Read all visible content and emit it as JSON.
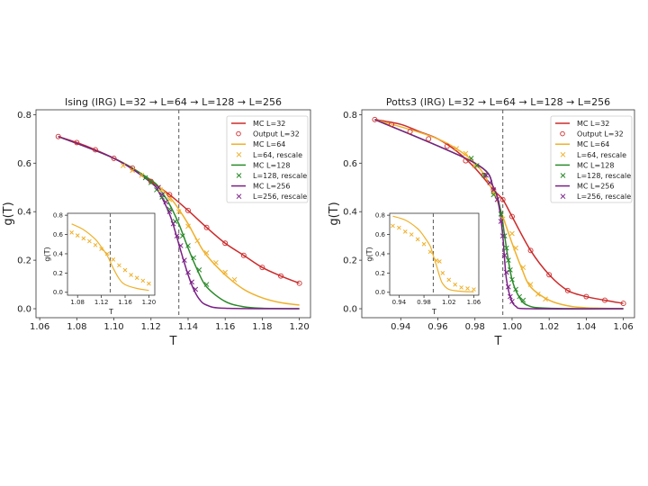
{
  "colors": {
    "red": "#cc2a2a",
    "yellow": "#efb02a",
    "green": "#2a8a2a",
    "purple": "#7a1f86",
    "dashed": "#666666"
  },
  "chart_data": [
    {
      "id": "ising-main",
      "type": "line",
      "title": "Ising (IRG)    L=32 → L=64 → L=128 → L=256",
      "xlabel": "T",
      "ylabel": "g(T)",
      "xlim": [
        1.058,
        1.206
      ],
      "ylim": [
        -0.037,
        0.82
      ],
      "xticks": [
        "1.06",
        "1.08",
        "1.10",
        "1.12",
        "1.14",
        "1.16",
        "1.18",
        "1.20"
      ],
      "yticks": [
        "0.0",
        "0.2",
        "0.4",
        "0.6",
        "0.8"
      ],
      "vline": 1.135,
      "legend": "top-right",
      "series": [
        {
          "name": "MC L=32",
          "kind": "line",
          "color": "red",
          "x": [
            1.07,
            1.08,
            1.09,
            1.1,
            1.11,
            1.12,
            1.13,
            1.14,
            1.15,
            1.16,
            1.17,
            1.18,
            1.19,
            1.2
          ],
          "y": [
            0.71,
            0.685,
            0.655,
            0.62,
            0.58,
            0.525,
            0.47,
            0.405,
            0.335,
            0.27,
            0.22,
            0.17,
            0.135,
            0.105
          ]
        },
        {
          "name": "Output L=32",
          "kind": "circle",
          "color": "red",
          "x": [
            1.07,
            1.08,
            1.09,
            1.1,
            1.11,
            1.12,
            1.13,
            1.14,
            1.15,
            1.16,
            1.17,
            1.18,
            1.19,
            1.2
          ],
          "y": [
            0.71,
            0.685,
            0.655,
            0.62,
            0.58,
            0.525,
            0.47,
            0.405,
            0.335,
            0.27,
            0.22,
            0.17,
            0.135,
            0.105
          ]
        },
        {
          "name": "MC L=64",
          "kind": "line",
          "color": "yellow",
          "x": [
            1.07,
            1.1,
            1.12,
            1.13,
            1.135,
            1.14,
            1.145,
            1.15,
            1.16,
            1.17,
            1.18,
            1.19,
            1.2
          ],
          "y": [
            0.71,
            0.62,
            0.53,
            0.46,
            0.41,
            0.35,
            0.28,
            0.22,
            0.14,
            0.08,
            0.045,
            0.025,
            0.015
          ]
        },
        {
          "name": "L=64, rescale",
          "kind": "cross",
          "color": "yellow",
          "x": [
            1.105,
            1.11,
            1.115,
            1.125,
            1.13,
            1.135,
            1.14,
            1.145,
            1.15,
            1.155,
            1.16,
            1.165
          ],
          "y": [
            0.59,
            0.57,
            0.55,
            0.49,
            0.45,
            0.4,
            0.34,
            0.28,
            0.23,
            0.19,
            0.15,
            0.12
          ]
        },
        {
          "name": "MC L=128",
          "kind": "line",
          "color": "green",
          "x": [
            1.07,
            1.1,
            1.12,
            1.125,
            1.13,
            1.135,
            1.14,
            1.145,
            1.15,
            1.16,
            1.17,
            1.18,
            1.2
          ],
          "y": [
            0.71,
            0.62,
            0.53,
            0.49,
            0.43,
            0.35,
            0.25,
            0.16,
            0.09,
            0.03,
            0.008,
            0.002,
            0.0
          ]
        },
        {
          "name": "L=128, rescale",
          "kind": "cross",
          "color": "green",
          "x": [
            1.117,
            1.12,
            1.123,
            1.126,
            1.13,
            1.133,
            1.137,
            1.14,
            1.143,
            1.146,
            1.15
          ],
          "y": [
            0.54,
            0.52,
            0.49,
            0.46,
            0.41,
            0.36,
            0.3,
            0.26,
            0.21,
            0.16,
            0.1
          ]
        },
        {
          "name": "MC L=256",
          "kind": "line",
          "color": "purple",
          "x": [
            1.07,
            1.1,
            1.12,
            1.125,
            1.13,
            1.133,
            1.136,
            1.14,
            1.143,
            1.146,
            1.15,
            1.16,
            1.2
          ],
          "y": [
            0.71,
            0.62,
            0.52,
            0.47,
            0.39,
            0.32,
            0.24,
            0.14,
            0.08,
            0.04,
            0.015,
            0.002,
            0.0
          ]
        },
        {
          "name": "L=256, rescale",
          "kind": "cross",
          "color": "purple",
          "x": [
            1.124,
            1.126,
            1.128,
            1.13,
            1.132,
            1.134,
            1.136,
            1.138,
            1.14,
            1.142,
            1.144
          ],
          "y": [
            0.5,
            0.47,
            0.44,
            0.4,
            0.35,
            0.3,
            0.26,
            0.2,
            0.15,
            0.11,
            0.08
          ]
        }
      ]
    },
    {
      "id": "ising-inset",
      "type": "line",
      "title": "",
      "xlabel": "T",
      "ylabel": "g(T)",
      "xlim": [
        1.063,
        1.21
      ],
      "ylim": [
        -0.03,
        0.82
      ],
      "xticks": [
        "1.08",
        "1.12",
        "1.16",
        "1.20"
      ],
      "yticks": [
        "0.0",
        "0.2",
        "0.4",
        "0.6",
        "0.8"
      ],
      "vline": 1.135,
      "series": [
        {
          "kind": "line",
          "color": "yellow",
          "x": [
            1.07,
            1.09,
            1.11,
            1.12,
            1.13,
            1.14,
            1.15,
            1.16,
            1.18,
            1.2
          ],
          "y": [
            0.71,
            0.65,
            0.55,
            0.47,
            0.38,
            0.25,
            0.14,
            0.08,
            0.04,
            0.02
          ]
        },
        {
          "kind": "cross",
          "color": "yellow",
          "x": [
            1.07,
            1.08,
            1.09,
            1.1,
            1.11,
            1.12,
            1.13,
            1.14,
            1.15,
            1.16,
            1.17,
            1.18,
            1.19,
            1.2
          ],
          "y": [
            0.62,
            0.59,
            0.56,
            0.53,
            0.49,
            0.45,
            0.4,
            0.34,
            0.28,
            0.23,
            0.18,
            0.15,
            0.12,
            0.09
          ]
        }
      ]
    },
    {
      "id": "potts3-main",
      "type": "line",
      "title": "Potts3 (IRG)    L=32 → L=64 → L=128 → L=256",
      "xlabel": "T",
      "ylabel": "g(T)",
      "xlim": [
        0.919,
        1.066
      ],
      "ylim": [
        -0.037,
        0.82
      ],
      "xticks": [
        "0.94",
        "0.96",
        "0.98",
        "1.00",
        "1.02",
        "1.04",
        "1.06"
      ],
      "yticks": [
        "0.0",
        "0.2",
        "0.4",
        "0.6",
        "0.8"
      ],
      "vline": 0.995,
      "legend": "top-right",
      "series": [
        {
          "name": "MC L=32",
          "kind": "line",
          "color": "red",
          "x": [
            0.926,
            0.94,
            0.95,
            0.96,
            0.97,
            0.98,
            0.99,
            0.995,
            1.0,
            1.01,
            1.02,
            1.03,
            1.04,
            1.05,
            1.06
          ],
          "y": [
            0.78,
            0.76,
            0.73,
            0.7,
            0.65,
            0.58,
            0.49,
            0.45,
            0.38,
            0.24,
            0.14,
            0.075,
            0.05,
            0.035,
            0.022
          ]
        },
        {
          "name": "Output L=32",
          "kind": "circle",
          "color": "red",
          "x": [
            0.926,
            0.935,
            0.945,
            0.955,
            0.965,
            0.975,
            0.985,
            0.99,
            0.995,
            1.0,
            1.01,
            1.02,
            1.03,
            1.04,
            1.05,
            1.06
          ],
          "y": [
            0.78,
            0.76,
            0.73,
            0.7,
            0.67,
            0.61,
            0.55,
            0.49,
            0.45,
            0.38,
            0.24,
            0.14,
            0.075,
            0.05,
            0.035,
            0.022
          ]
        },
        {
          "name": "MC L=64",
          "kind": "line",
          "color": "yellow",
          "x": [
            0.926,
            0.96,
            0.98,
            0.99,
            0.995,
            1.0,
            1.005,
            1.01,
            1.02,
            1.03,
            1.04,
            1.06
          ],
          "y": [
            0.78,
            0.7,
            0.6,
            0.48,
            0.38,
            0.27,
            0.17,
            0.09,
            0.035,
            0.012,
            0.004,
            0.0
          ]
        },
        {
          "name": "L=64, rescale",
          "kind": "cross",
          "color": "yellow",
          "x": [
            0.97,
            0.975,
            0.98,
            0.985,
            0.99,
            0.995,
            1.0,
            1.002,
            1.006,
            1.01,
            1.014,
            1.018
          ],
          "y": [
            0.66,
            0.64,
            0.59,
            0.55,
            0.48,
            0.37,
            0.31,
            0.25,
            0.17,
            0.1,
            0.06,
            0.04
          ]
        },
        {
          "name": "MC L=128",
          "kind": "line",
          "color": "green",
          "x": [
            0.926,
            0.98,
            0.99,
            0.994,
            0.996,
            0.998,
            1.0,
            1.003,
            1.008,
            1.02,
            1.06
          ],
          "y": [
            0.78,
            0.6,
            0.5,
            0.4,
            0.3,
            0.2,
            0.12,
            0.06,
            0.015,
            0.002,
            0.0
          ]
        },
        {
          "name": "L=128, rescale",
          "kind": "cross",
          "color": "green",
          "x": [
            0.978,
            0.981,
            0.985,
            0.99,
            0.994,
            0.996,
            0.997,
            0.998,
            0.999,
            1.0,
            1.002,
            1.004,
            1.006
          ],
          "y": [
            0.62,
            0.59,
            0.55,
            0.47,
            0.39,
            0.3,
            0.25,
            0.2,
            0.16,
            0.12,
            0.08,
            0.05,
            0.035
          ]
        },
        {
          "name": "MC L=256",
          "kind": "line",
          "color": "purple",
          "x": [
            0.926,
            0.98,
            0.99,
            0.993,
            0.995,
            0.996,
            0.997,
            0.999,
            1.002,
            1.01,
            1.06
          ],
          "y": [
            0.78,
            0.6,
            0.5,
            0.42,
            0.3,
            0.2,
            0.12,
            0.05,
            0.01,
            0.0,
            0.0
          ]
        },
        {
          "name": "L=256, rescale",
          "kind": "cross",
          "color": "purple",
          "x": [
            0.986,
            0.988,
            0.99,
            0.992,
            0.994,
            0.995,
            0.996,
            0.997,
            0.998,
            0.999,
            1.0
          ],
          "y": [
            0.55,
            0.52,
            0.49,
            0.45,
            0.36,
            0.3,
            0.22,
            0.15,
            0.09,
            0.05,
            0.03
          ]
        }
      ]
    },
    {
      "id": "potts3-inset",
      "type": "line",
      "title": "",
      "xlabel": "T",
      "ylabel": "g(T)",
      "xlim": [
        0.925,
        1.068
      ],
      "ylim": [
        -0.03,
        0.82
      ],
      "xticks": [
        "0.94",
        "0.98",
        "1.02",
        "1.06"
      ],
      "yticks": [
        "0.0",
        "0.2",
        "0.4",
        "0.6",
        "0.8"
      ],
      "vline": 0.995,
      "series": [
        {
          "kind": "line",
          "color": "yellow",
          "x": [
            0.93,
            0.95,
            0.97,
            0.98,
            0.99,
            0.995,
            1.0,
            1.005,
            1.01,
            1.02,
            1.04,
            1.06
          ],
          "y": [
            0.79,
            0.75,
            0.66,
            0.58,
            0.48,
            0.38,
            0.28,
            0.17,
            0.09,
            0.03,
            0.01,
            0.005
          ]
        },
        {
          "kind": "cross",
          "color": "yellow",
          "x": [
            0.93,
            0.94,
            0.95,
            0.96,
            0.97,
            0.98,
            0.99,
            1.0,
            1.005,
            1.01,
            1.02,
            1.03,
            1.04,
            1.05,
            1.06
          ],
          "y": [
            0.69,
            0.67,
            0.63,
            0.6,
            0.55,
            0.5,
            0.42,
            0.33,
            0.32,
            0.2,
            0.13,
            0.08,
            0.05,
            0.04,
            0.03
          ]
        }
      ]
    }
  ]
}
